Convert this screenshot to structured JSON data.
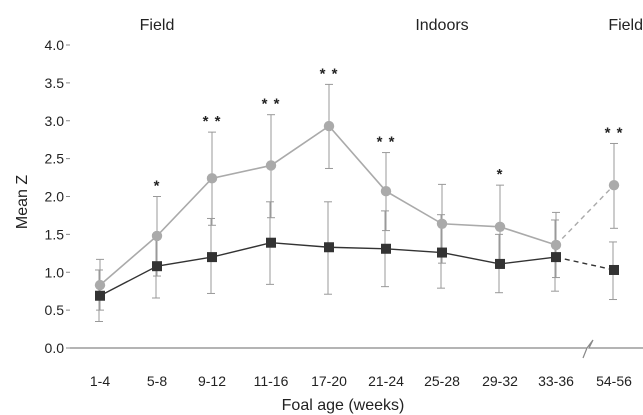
{
  "chart_data": {
    "type": "line",
    "title": "",
    "xlabel": "Foal age (weeks)",
    "ylabel": "Mean Z",
    "ylim": [
      0.0,
      4.0
    ],
    "yticks": [
      "0.0",
      "0.5",
      "1.0",
      "1.5",
      "2.0",
      "2.5",
      "3.0",
      "3.5",
      "4.0"
    ],
    "categories": [
      "1-4",
      "5-8",
      "9-12",
      "11-16",
      "17-20",
      "21-24",
      "25-28",
      "29-32",
      "33-36",
      "54-56"
    ],
    "axis_break_between": [
      "33-36",
      "54-56"
    ],
    "grid": false,
    "periods": [
      {
        "label": "Field",
        "anchor": "5-8"
      },
      {
        "label": "Indoors",
        "anchor": "25-28"
      },
      {
        "label": "Field",
        "anchor": "54-56"
      }
    ],
    "series": [
      {
        "name": "",
        "color": "#aaaaaa",
        "marker": "circle",
        "values": [
          0.83,
          1.48,
          2.24,
          2.41,
          2.93,
          2.07,
          1.64,
          1.6,
          1.36,
          2.15
        ],
        "err_upper": [
          1.17,
          2.0,
          2.85,
          3.08,
          3.48,
          2.58,
          2.16,
          2.15,
          1.79,
          2.7
        ],
        "err_lower": [
          0.5,
          0.95,
          1.62,
          1.72,
          2.37,
          1.55,
          1.12,
          1.05,
          0.93,
          1.58
        ]
      },
      {
        "name": "",
        "color": "#333333",
        "marker": "square",
        "values": [
          0.69,
          1.08,
          1.2,
          1.39,
          1.33,
          1.31,
          1.26,
          1.11,
          1.2,
          1.03
        ],
        "err_upper": [
          1.03,
          1.5,
          1.71,
          1.93,
          1.93,
          1.81,
          1.76,
          1.5,
          1.69,
          1.4
        ],
        "err_lower": [
          0.35,
          0.66,
          0.72,
          0.84,
          0.71,
          0.81,
          0.79,
          0.73,
          0.75,
          0.64
        ]
      }
    ],
    "significance": [
      {
        "category": "5-8",
        "label": "*"
      },
      {
        "category": "9-12",
        "label": "* *"
      },
      {
        "category": "11-16",
        "label": "* *"
      },
      {
        "category": "17-20",
        "label": "* *"
      },
      {
        "category": "21-24",
        "label": "* *"
      },
      {
        "category": "29-32",
        "label": "*"
      },
      {
        "category": "54-56",
        "label": "* *"
      }
    ]
  }
}
